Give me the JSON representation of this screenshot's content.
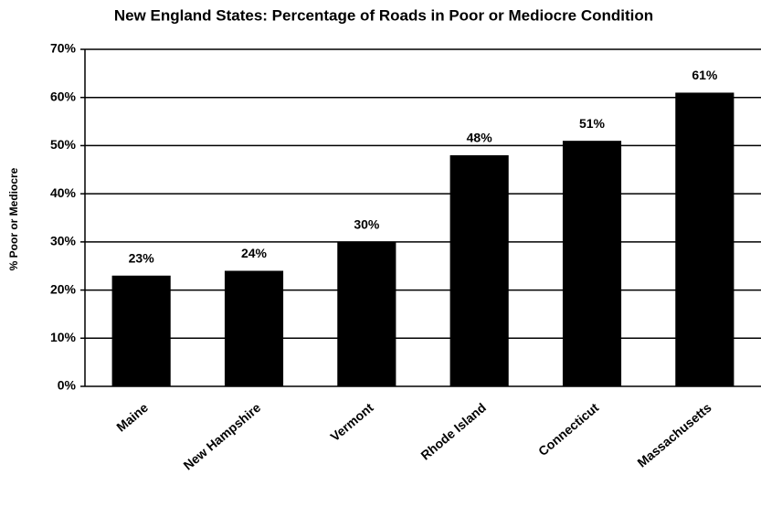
{
  "chart_data": {
    "type": "bar",
    "title": "New England States: Percentage of Roads in Poor or Mediocre Condition",
    "y_label": "% Poor or Mediocre",
    "categories": [
      "Maine",
      "New Hampshire",
      "Vermont",
      "Rhode Island",
      "Connecticut",
      "Massachusetts"
    ],
    "values": [
      23,
      24,
      30,
      48,
      51,
      61
    ],
    "value_labels": [
      "23%",
      "24%",
      "30%",
      "48%",
      "51%",
      "61%"
    ],
    "color": "#000000",
    "ylim": [
      0,
      70
    ],
    "yticks": [
      {
        "value": 0,
        "label": "0%"
      },
      {
        "value": 10,
        "label": "10%"
      },
      {
        "value": 20,
        "label": "20%"
      },
      {
        "value": 30,
        "label": "30%"
      },
      {
        "value": 40,
        "label": "40%"
      },
      {
        "value": 50,
        "label": "50%"
      },
      {
        "value": 60,
        "label": "60%"
      },
      {
        "value": 70,
        "label": "70%"
      }
    ],
    "grid": true
  }
}
